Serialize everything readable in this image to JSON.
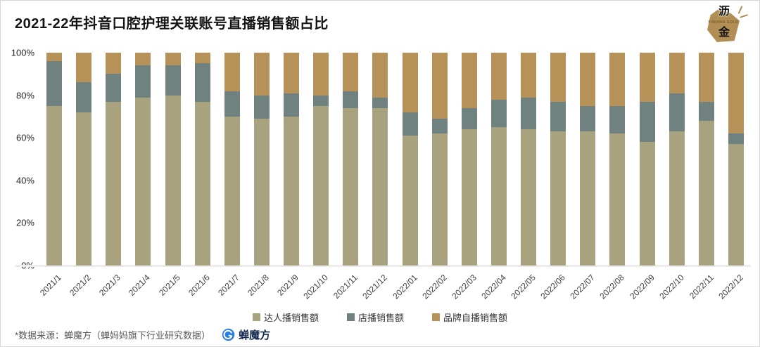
{
  "title": "2021-22年抖音口腔护理关联账号直播销售额占比",
  "brand_logo": {
    "char_top": "沥",
    "char_bottom": "金",
    "caption": "FINDING GOLD",
    "gold_color": "#b18f54"
  },
  "chart_data": {
    "type": "bar",
    "stacked": true,
    "title": "2021-22年抖音口腔护理关联账号直播销售额占比",
    "categories": [
      "2021/1",
      "2021/2",
      "2021/3",
      "2021/4",
      "2021/5",
      "2021/6",
      "2021/7",
      "2021/8",
      "2021/9",
      "2021/10",
      "2021/11",
      "2021/12",
      "2022/01",
      "2022/02",
      "2022/03",
      "2022/04",
      "2022/05",
      "2022/06",
      "2022/07",
      "2022/08",
      "2022/09",
      "2022/10",
      "2022/11",
      "2022/12"
    ],
    "series": [
      {
        "name": "达人播销售额",
        "color": "#a9a27e",
        "values": [
          75,
          72,
          77,
          79,
          80,
          77,
          70,
          69,
          70,
          75,
          74,
          74,
          61,
          62,
          64,
          65,
          64,
          63,
          63,
          62,
          58,
          63,
          68,
          57
        ]
      },
      {
        "name": "店播销售额",
        "color": "#6f827f",
        "values": [
          21,
          14,
          13,
          15,
          14,
          18,
          12,
          11,
          11,
          5,
          8,
          5,
          11,
          7,
          10,
          13,
          15,
          14,
          12,
          13,
          19,
          18,
          9,
          5
        ]
      },
      {
        "name": "品牌自播销售额",
        "color": "#b69158",
        "values": [
          4,
          14,
          10,
          6,
          6,
          5,
          18,
          20,
          19,
          20,
          18,
          21,
          28,
          31,
          26,
          22,
          21,
          23,
          25,
          25,
          23,
          19,
          23,
          38
        ]
      }
    ],
    "ylim": [
      0,
      100
    ],
    "y_ticks": [
      "0%",
      "20%",
      "40%",
      "60%",
      "80%",
      "100%"
    ],
    "grid": false,
    "legend_position": "bottom",
    "unit": "%"
  },
  "footer": {
    "source_note": "*数据来源：蝉魔方（蝉妈妈旗下行业研究数据）",
    "logo_text": "蝉魔方",
    "logo_color": "#2a7de1"
  }
}
